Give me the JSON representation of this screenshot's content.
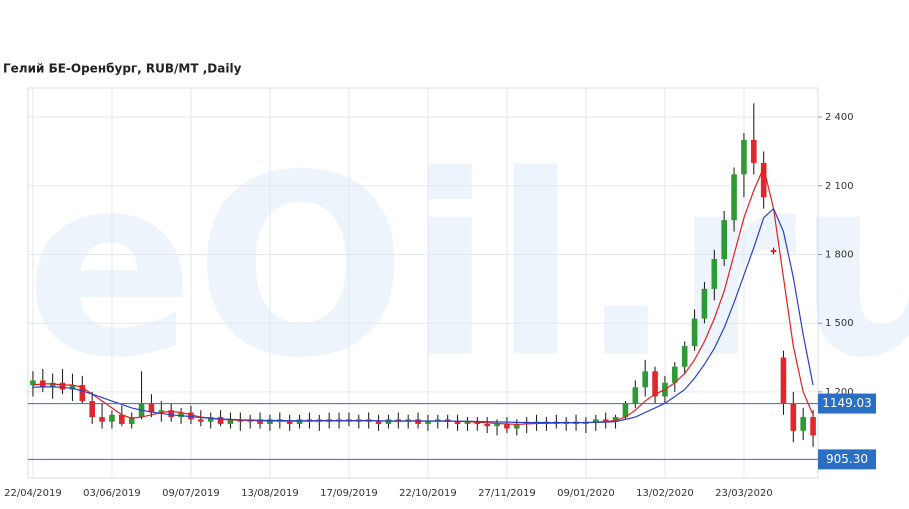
{
  "chart_data": {
    "type": "candlestick",
    "title": "Гелий БЕ-Оренбург,  RUB/MT ,Daily",
    "watermark": "eOil.ru",
    "categories": [
      "22/04/2019",
      null,
      null,
      null,
      null,
      null,
      null,
      null,
      "03/06/2019",
      null,
      null,
      null,
      null,
      null,
      null,
      null,
      "09/07/2019",
      null,
      null,
      null,
      null,
      null,
      null,
      null,
      "13/08/2019",
      null,
      null,
      null,
      null,
      null,
      null,
      null,
      "17/09/2019",
      null,
      null,
      null,
      null,
      null,
      null,
      null,
      "22/10/2019",
      null,
      null,
      null,
      null,
      null,
      null,
      null,
      "27/11/2019",
      null,
      null,
      null,
      null,
      null,
      null,
      null,
      "09/01/2020",
      null,
      null,
      null,
      null,
      null,
      null,
      null,
      "13/02/2020",
      null,
      null,
      null,
      null,
      null,
      null,
      null,
      "23/03/2020",
      null,
      null,
      null,
      null,
      null,
      null,
      null
    ],
    "open": [
      1230,
      1250,
      1220,
      1240,
      1210,
      1230,
      1160,
      1090,
      1070,
      1100,
      1060,
      1090,
      1150,
      1110,
      1120,
      1090,
      1110,
      1080,
      1070,
      1090,
      1060,
      1080,
      1070,
      1080,
      1060,
      1080,
      1070,
      1060,
      1080,
      1070,
      1080,
      1070,
      1080,
      1070,
      1080,
      1070,
      1060,
      1080,
      1070,
      1080,
      1060,
      1070,
      1080,
      1070,
      1060,
      1070,
      1060,
      1050,
      1060,
      1040,
      1060,
      1070,
      1060,
      1070,
      1060,
      1070,
      1060,
      1070,
      1080,
      1070,
      1090,
      1150,
      1220,
      1290,
      1180,
      1240,
      1310,
      1400,
      1520,
      1650,
      1780,
      1950,
      2150,
      2300,
      2200,
      1820,
      1350,
      1150,
      1030,
      1090
    ],
    "high": [
      1290,
      1300,
      1280,
      1300,
      1280,
      1270,
      1200,
      1150,
      1120,
      1140,
      1110,
      1290,
      1190,
      1160,
      1150,
      1130,
      1140,
      1120,
      1110,
      1120,
      1110,
      1110,
      1100,
      1110,
      1100,
      1110,
      1100,
      1100,
      1110,
      1100,
      1110,
      1110,
      1110,
      1100,
      1110,
      1100,
      1100,
      1110,
      1100,
      1110,
      1100,
      1100,
      1100,
      1100,
      1090,
      1090,
      1090,
      1080,
      1090,
      1080,
      1090,
      1100,
      1090,
      1100,
      1090,
      1100,
      1090,
      1100,
      1110,
      1100,
      1160,
      1250,
      1340,
      1310,
      1270,
      1330,
      1420,
      1560,
      1680,
      1820,
      1990,
      2180,
      2330,
      2460,
      2250,
      1830,
      1380,
      1200,
      1130,
      1120
    ],
    "low": [
      1180,
      1200,
      1170,
      1190,
      1160,
      1150,
      1060,
      1040,
      1040,
      1050,
      1040,
      1080,
      1090,
      1070,
      1070,
      1060,
      1060,
      1050,
      1040,
      1050,
      1040,
      1030,
      1040,
      1040,
      1030,
      1040,
      1030,
      1040,
      1040,
      1030,
      1040,
      1040,
      1050,
      1040,
      1040,
      1030,
      1040,
      1040,
      1040,
      1040,
      1030,
      1040,
      1040,
      1030,
      1030,
      1030,
      1020,
      1010,
      1020,
      1010,
      1020,
      1030,
      1030,
      1040,
      1030,
      1030,
      1020,
      1030,
      1040,
      1040,
      1080,
      1130,
      1180,
      1150,
      1150,
      1200,
      1280,
      1380,
      1500,
      1600,
      1750,
      1900,
      2050,
      2150,
      2000,
      1800,
      1100,
      980,
      990,
      960
    ],
    "close": [
      1250,
      1220,
      1240,
      1210,
      1230,
      1160,
      1090,
      1070,
      1100,
      1060,
      1090,
      1150,
      1110,
      1120,
      1090,
      1110,
      1080,
      1070,
      1090,
      1060,
      1080,
      1070,
      1080,
      1060,
      1080,
      1070,
      1060,
      1080,
      1070,
      1080,
      1070,
      1080,
      1070,
      1080,
      1070,
      1060,
      1080,
      1070,
      1080,
      1060,
      1070,
      1080,
      1070,
      1060,
      1070,
      1060,
      1050,
      1060,
      1040,
      1060,
      1070,
      1060,
      1070,
      1060,
      1070,
      1060,
      1070,
      1080,
      1070,
      1090,
      1150,
      1220,
      1290,
      1180,
      1240,
      1310,
      1400,
      1520,
      1650,
      1780,
      1950,
      2150,
      2300,
      2200,
      2050,
      1810,
      1150,
      1030,
      1090,
      1010
    ],
    "up_color": "#2e9a35",
    "down_color": "#e3262b",
    "series": [
      {
        "color": "#e02020",
        "values": [
          1230,
          1235,
          1235,
          1230,
          1230,
          1220,
          1190,
          1160,
          1130,
          1100,
          1085,
          1090,
          1100,
          1110,
          1115,
          1110,
          1100,
          1090,
          1085,
          1080,
          1078,
          1076,
          1075,
          1074,
          1073,
          1073,
          1072,
          1072,
          1073,
          1073,
          1074,
          1074,
          1074,
          1074,
          1074,
          1073,
          1072,
          1072,
          1073,
          1073,
          1072,
          1072,
          1073,
          1072,
          1070,
          1068,
          1065,
          1062,
          1060,
          1058,
          1060,
          1062,
          1063,
          1064,
          1065,
          1065,
          1066,
          1068,
          1070,
          1075,
          1090,
          1120,
          1160,
          1190,
          1210,
          1240,
          1280,
          1340,
          1420,
          1520,
          1640,
          1800,
          1960,
          2080,
          2180,
          2000,
          1700,
          1400,
          1200,
          1100
        ]
      },
      {
        "color": "#2a3fc8",
        "values": [
          1220,
          1222,
          1222,
          1220,
          1215,
          1205,
          1190,
          1175,
          1160,
          1145,
          1130,
          1120,
          1112,
          1106,
          1100,
          1096,
          1092,
          1088,
          1085,
          1082,
          1080,
          1078,
          1077,
          1076,
          1075,
          1075,
          1074,
          1074,
          1074,
          1074,
          1074,
          1074,
          1074,
          1074,
          1074,
          1074,
          1073,
          1073,
          1073,
          1073,
          1073,
          1073,
          1073,
          1072,
          1072,
          1071,
          1070,
          1069,
          1068,
          1067,
          1066,
          1066,
          1066,
          1066,
          1066,
          1066,
          1066,
          1067,
          1068,
          1070,
          1080,
          1090,
          1110,
          1130,
          1150,
          1180,
          1210,
          1260,
          1320,
          1390,
          1480,
          1590,
          1710,
          1830,
          1960,
          2000,
          1900,
          1700,
          1450,
          1230
        ]
      }
    ],
    "hlines": [
      {
        "value": 1149.03,
        "label": "1149.03"
      },
      {
        "value": 905.3,
        "label": "905.30"
      }
    ],
    "hline_color": "#2a6fc4",
    "ylim": [
      824,
      2527
    ],
    "yticks": [
      {
        "value": 1200,
        "label": "1 200"
      },
      {
        "value": 1500,
        "label": "1 500"
      },
      {
        "value": 1800,
        "label": "1 800"
      },
      {
        "value": 2100,
        "label": "2 100"
      },
      {
        "value": 2400,
        "label": "2 400"
      }
    ],
    "grid": true
  }
}
